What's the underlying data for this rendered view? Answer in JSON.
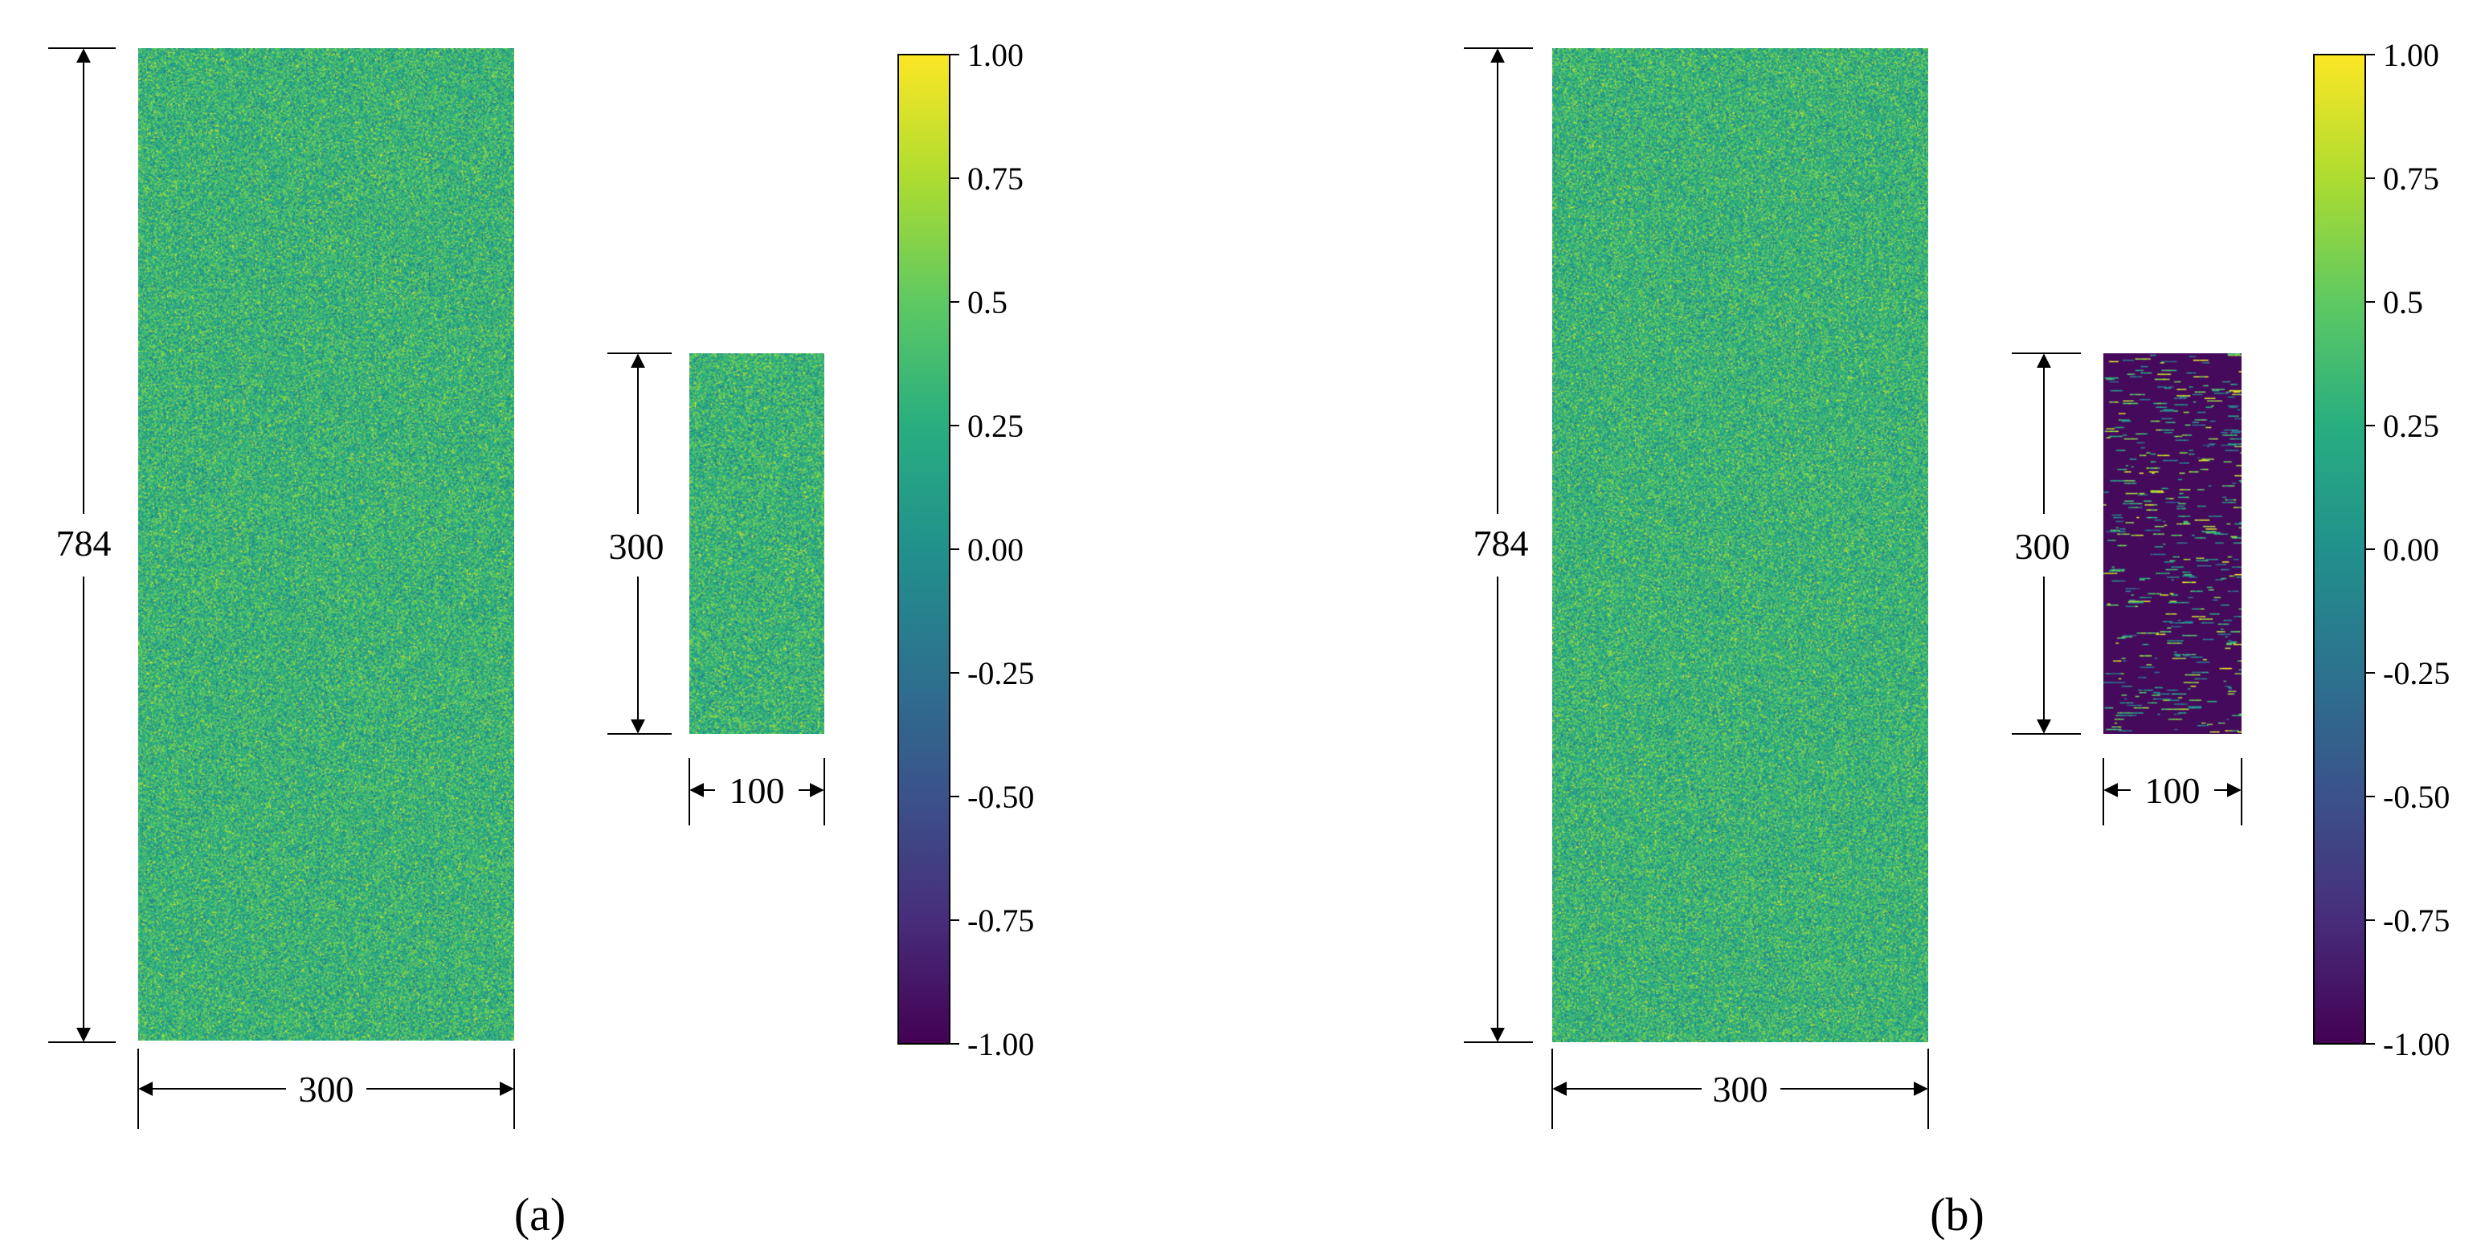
{
  "chart_data": [
    {
      "type": "heatmap",
      "panel_label": "(a)",
      "colormap": "viridis",
      "matrices": [
        {
          "rows": 784,
          "cols": 300,
          "height_label": "784",
          "width_label": "300",
          "pattern": "dense random noise, values concentrated around 0.25–0.5"
        },
        {
          "rows": 300,
          "cols": 100,
          "height_label": "300",
          "width_label": "100",
          "pattern": "dense random noise, values concentrated around 0.25–0.5"
        }
      ],
      "colorbar": {
        "range": [
          -1.0,
          1.0
        ],
        "ticks": [
          "1.00",
          "0.75",
          "0.5",
          "0.25",
          "0.00",
          "-0.25",
          "-0.50",
          "-0.75",
          "-1.00"
        ]
      }
    },
    {
      "type": "heatmap",
      "panel_label": "(b)",
      "colormap": "viridis",
      "matrices": [
        {
          "rows": 784,
          "cols": 300,
          "height_label": "784",
          "width_label": "300",
          "pattern": "dense random noise, values concentrated around 0.25–0.5"
        },
        {
          "rows": 300,
          "cols": 100,
          "height_label": "300",
          "width_label": "100",
          "pattern": "sparse: mostly -1.00 (dark purple) with scattered horizontal streaks of high values"
        }
      ],
      "colorbar": {
        "range": [
          -1.0,
          1.0
        ],
        "ticks": [
          "1.00",
          "0.75",
          "0.5",
          "0.25",
          "0.00",
          "-0.25",
          "-0.50",
          "-0.75",
          "-1.00"
        ]
      }
    }
  ]
}
